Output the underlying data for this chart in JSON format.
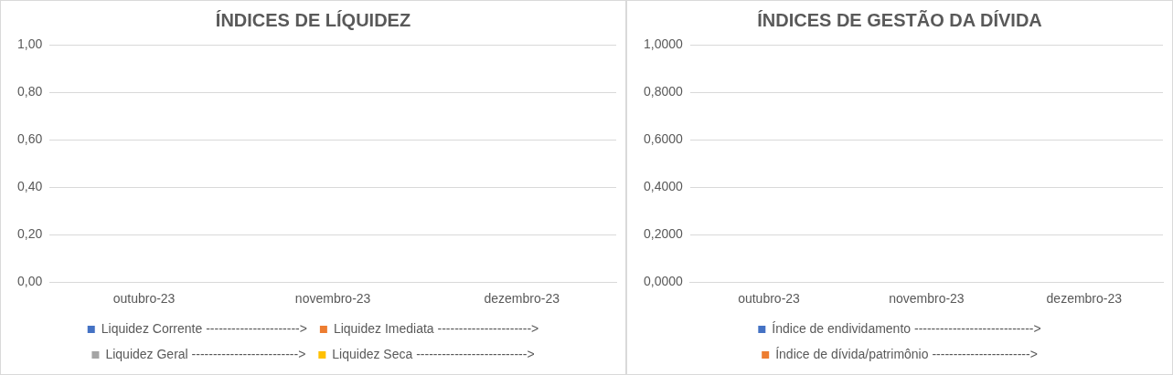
{
  "chart_data": [
    {
      "type": "bar",
      "title": "ÍNDICES DE LÍQUIDEZ",
      "categories": [
        "outubro-23",
        "novembro-23",
        "dezembro-23"
      ],
      "series": [
        {
          "name": "Liquidez Corrente ---------------------->",
          "color": "#4472c4",
          "values": [
            0,
            0,
            0
          ]
        },
        {
          "name": "Liquidez Imediata ---------------------->",
          "color": "#ed7d31",
          "values": [
            0,
            0,
            0
          ]
        },
        {
          "name": "Liquidez Geral ------------------------->",
          "color": "#a5a5a5",
          "values": [
            0,
            0,
            0
          ]
        },
        {
          "name": "Liquidez Seca -------------------------->",
          "color": "#ffc000",
          "values": [
            0,
            0,
            0
          ]
        }
      ],
      "ylim": [
        0,
        1
      ],
      "yticks": [
        {
          "value": 0,
          "label": "0,00"
        },
        {
          "value": 0.2,
          "label": "0,20"
        },
        {
          "value": 0.4,
          "label": "0,40"
        },
        {
          "value": 0.6,
          "label": "0,60"
        },
        {
          "value": 0.8,
          "label": "0,80"
        },
        {
          "value": 1,
          "label": "1,00"
        }
      ],
      "grid": "y",
      "legend": "bottom"
    },
    {
      "type": "bar",
      "title": "ÍNDICES DE GESTÃO DA DÍVIDA",
      "categories": [
        "outubro-23",
        "novembro-23",
        "dezembro-23"
      ],
      "series": [
        {
          "name": "Índice de endividamento ---------------------------->",
          "color": "#4472c4",
          "values": [
            0,
            0,
            0
          ]
        },
        {
          "name": "Índice de dívida/patrimônio ----------------------->",
          "color": "#ed7d31",
          "values": [
            0,
            0,
            0
          ]
        }
      ],
      "ylim": [
        0,
        1
      ],
      "yticks": [
        {
          "value": 0,
          "label": "0,0000"
        },
        {
          "value": 0.2,
          "label": "0,2000"
        },
        {
          "value": 0.4,
          "label": "0,4000"
        },
        {
          "value": 0.6,
          "label": "0,6000"
        },
        {
          "value": 0.8,
          "label": "0,8000"
        },
        {
          "value": 1,
          "label": "1,0000"
        }
      ],
      "grid": "y",
      "legend": "bottom"
    }
  ]
}
